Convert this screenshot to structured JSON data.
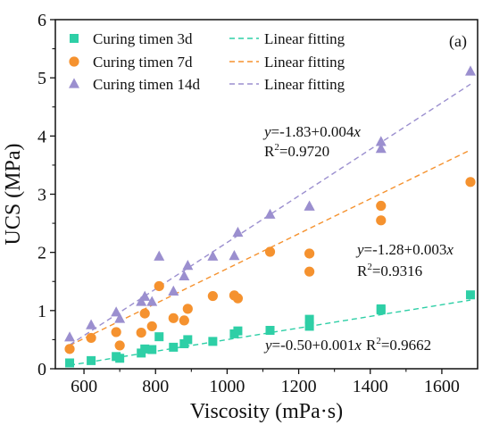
{
  "chart_data": {
    "type": "scatter",
    "panel_label": "(a)",
    "xlabel": "Viscosity (mPa·s)",
    "ylabel": "UCS (MPa)",
    "xlim": [
      520,
      1700
    ],
    "ylim": [
      0,
      6
    ],
    "xticks": [
      600,
      800,
      1000,
      1200,
      1400,
      1600
    ],
    "yticks": [
      0,
      1,
      2,
      3,
      4,
      5,
      6
    ],
    "grid": false,
    "legend_position": "top-left",
    "series": [
      {
        "name": "Curing timen 3d",
        "marker": "square",
        "color": "#2ecfa6",
        "fit_label": "Linear fitting",
        "fit": {
          "intercept": -0.5,
          "slope": 0.001,
          "x_range": [
            560,
            1680
          ]
        },
        "points": [
          [
            560,
            0.1
          ],
          [
            620,
            0.14
          ],
          [
            690,
            0.21
          ],
          [
            700,
            0.18
          ],
          [
            760,
            0.27
          ],
          [
            770,
            0.34
          ],
          [
            790,
            0.33
          ],
          [
            810,
            0.55
          ],
          [
            850,
            0.37
          ],
          [
            880,
            0.43
          ],
          [
            890,
            0.5
          ],
          [
            960,
            0.47
          ],
          [
            1020,
            0.6
          ],
          [
            1030,
            0.65
          ],
          [
            1120,
            0.66
          ],
          [
            1230,
            0.73
          ],
          [
            1230,
            0.85
          ],
          [
            1430,
            1.03
          ],
          [
            1430,
            1.01
          ],
          [
            1680,
            1.27
          ]
        ]
      },
      {
        "name": "Curing timen 7d",
        "marker": "circle",
        "color": "#f5922f",
        "fit_label": "Linear fitting",
        "fit": {
          "intercept": -1.28,
          "slope": 0.003,
          "x_range": [
            560,
            1680
          ]
        },
        "points": [
          [
            560,
            0.34
          ],
          [
            620,
            0.53
          ],
          [
            690,
            0.63
          ],
          [
            700,
            0.4
          ],
          [
            760,
            0.62
          ],
          [
            770,
            0.95
          ],
          [
            790,
            0.73
          ],
          [
            810,
            1.42
          ],
          [
            850,
            0.87
          ],
          [
            880,
            0.83
          ],
          [
            890,
            1.03
          ],
          [
            960,
            1.25
          ],
          [
            1020,
            1.26
          ],
          [
            1030,
            1.21
          ],
          [
            1120,
            2.01
          ],
          [
            1230,
            1.98
          ],
          [
            1230,
            1.67
          ],
          [
            1430,
            2.8
          ],
          [
            1430,
            2.55
          ],
          [
            1680,
            3.21
          ]
        ]
      },
      {
        "name": "Curing timen 14d",
        "marker": "triangle",
        "color": "#9b8fcf",
        "fit_label": "Linear fitting",
        "fit": {
          "intercept": -1.83,
          "slope": 0.004,
          "x_range": [
            560,
            1680
          ]
        },
        "points": [
          [
            560,
            0.54
          ],
          [
            620,
            0.75
          ],
          [
            690,
            0.97
          ],
          [
            700,
            0.86
          ],
          [
            760,
            1.15
          ],
          [
            770,
            1.24
          ],
          [
            790,
            1.15
          ],
          [
            810,
            1.93
          ],
          [
            850,
            1.33
          ],
          [
            880,
            1.59
          ],
          [
            890,
            1.77
          ],
          [
            960,
            1.93
          ],
          [
            1020,
            1.94
          ],
          [
            1030,
            2.34
          ],
          [
            1120,
            2.65
          ],
          [
            1230,
            2.79
          ],
          [
            1230,
            2.79
          ],
          [
            1430,
            3.9
          ],
          [
            1430,
            3.78
          ],
          [
            1680,
            5.11
          ]
        ]
      }
    ],
    "annotations": [
      {
        "eq_y": "y",
        "eq_rest": "=-1.83+0.004",
        "eq_x": "x",
        "r2_base": "R",
        "r2_sup": "2",
        "r2_val": "=0.9720"
      },
      {
        "eq_y": "y",
        "eq_rest": "=-1.28+0.003",
        "eq_x": "x",
        "r2_base": "R",
        "r2_sup": "2",
        "r2_val": "=0.9316"
      },
      {
        "eq_y": "y",
        "eq_rest": "=-0.50+0.001",
        "eq_x": "x",
        "r2_base": "R",
        "r2_sup": "2",
        "r2_val": "=0.9662"
      }
    ]
  }
}
